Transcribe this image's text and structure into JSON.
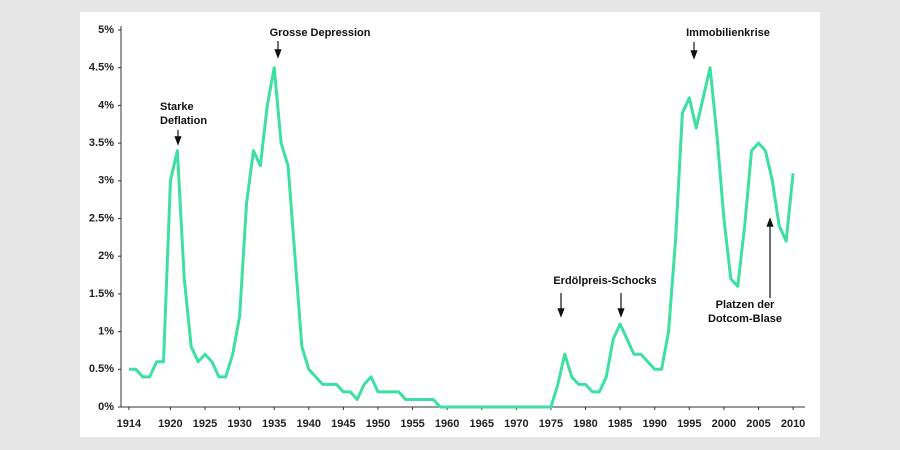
{
  "chart_data": {
    "type": "line",
    "x": [
      1914,
      1915,
      1916,
      1917,
      1918,
      1919,
      1920,
      1921,
      1922,
      1923,
      1924,
      1925,
      1926,
      1927,
      1928,
      1929,
      1930,
      1931,
      1932,
      1933,
      1934,
      1935,
      1936,
      1937,
      1938,
      1939,
      1940,
      1941,
      1942,
      1943,
      1944,
      1945,
      1946,
      1947,
      1948,
      1949,
      1950,
      1951,
      1952,
      1953,
      1954,
      1955,
      1956,
      1957,
      1958,
      1959,
      1960,
      1961,
      1962,
      1963,
      1964,
      1965,
      1966,
      1967,
      1968,
      1969,
      1970,
      1971,
      1972,
      1973,
      1974,
      1975,
      1976,
      1977,
      1978,
      1979,
      1980,
      1981,
      1982,
      1983,
      1984,
      1985,
      1986,
      1987,
      1988,
      1989,
      1990,
      1991,
      1992,
      1993,
      1994,
      1995,
      1996,
      1997,
      1998,
      1999,
      2000,
      2001,
      2002,
      2003,
      2004,
      2005,
      2006,
      2007,
      2008,
      2009,
      2010
    ],
    "series": [
      {
        "color": "#3ee0a2",
        "values": [
          0.5,
          0.5,
          0.4,
          0.4,
          0.6,
          0.6,
          3.0,
          3.4,
          1.7,
          0.8,
          0.6,
          0.7,
          0.6,
          0.4,
          0.4,
          0.7,
          1.2,
          2.7,
          3.4,
          3.2,
          4.0,
          4.5,
          3.5,
          3.2,
          2.0,
          0.8,
          0.5,
          0.4,
          0.3,
          0.3,
          0.3,
          0.2,
          0.2,
          0.1,
          0.3,
          0.4,
          0.2,
          0.2,
          0.2,
          0.2,
          0.1,
          0.1,
          0.1,
          0.1,
          0.1,
          0,
          0,
          0,
          0,
          0,
          0,
          0,
          0,
          0,
          0,
          0,
          0,
          0,
          0,
          0,
          0,
          0,
          0.3,
          0.7,
          0.4,
          0.3,
          0.3,
          0.2,
          0.2,
          0.4,
          0.9,
          1.1,
          0.9,
          0.7,
          0.7,
          0.6,
          0.5,
          0.5,
          1.0,
          2.2,
          3.9,
          4.1,
          3.7,
          4.1,
          4.5,
          3.6,
          2.5,
          1.7,
          1.6,
          2.4,
          3.4,
          3.5,
          3.4,
          3.0,
          2.4,
          2.2,
          3.1
        ]
      }
    ],
    "xlim": [
      1913,
      2011
    ],
    "xticks": [
      1914,
      1920,
      1925,
      1930,
      1935,
      1940,
      1945,
      1950,
      1955,
      1960,
      1965,
      1970,
      1975,
      1980,
      1985,
      1990,
      1995,
      2000,
      2005,
      2010
    ],
    "ylim": [
      0,
      5
    ],
    "yticks": [
      {
        "value": 0,
        "label": "0%"
      },
      {
        "value": 0.5,
        "label": "0.5%"
      },
      {
        "value": 1,
        "label": "1%"
      },
      {
        "value": 1.5,
        "label": "1.5%"
      },
      {
        "value": 2,
        "label": "2%"
      },
      {
        "value": 2.5,
        "label": "2.5%"
      },
      {
        "value": 3,
        "label": "3%"
      },
      {
        "value": 3.5,
        "label": "3.5%"
      },
      {
        "value": 4,
        "label": "4%"
      },
      {
        "value": 4.5,
        "label": "4.5%"
      },
      {
        "value": 5,
        "label": "5%"
      }
    ],
    "grid": false,
    "annotations": [
      "Starke Deflation",
      "Grosse Depression",
      "Erdölpreis-Schocks",
      "Immobilienkrise",
      "Platzen der Dotcom-Blase"
    ]
  }
}
